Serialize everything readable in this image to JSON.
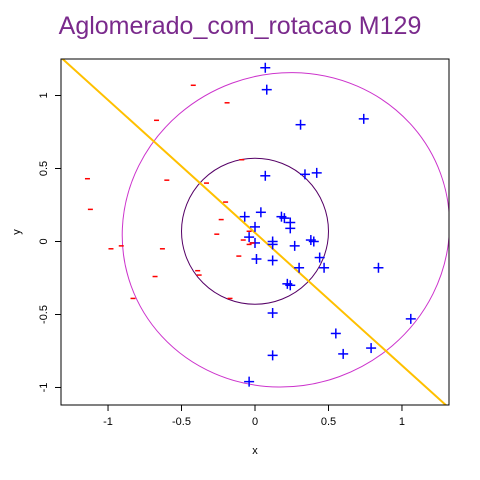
{
  "chart_data": {
    "type": "scatter",
    "title": "Aglomerado_com_rotacao M129",
    "xlabel": "x",
    "ylabel": "y",
    "xlim": [
      -1.32,
      1.32
    ],
    "ylim": [
      -1.12,
      1.25
    ],
    "xticks": [
      -1,
      -0.5,
      0,
      0.5,
      1
    ],
    "xtick_labels": [
      "-1",
      "-0.5",
      "0",
      "0.5",
      "1"
    ],
    "yticks": [
      -1,
      -0.5,
      0,
      0.5,
      1
    ],
    "ytick_labels": [
      "-1",
      "-0.5",
      "0",
      "0.5",
      "1"
    ],
    "grid": false,
    "colors": {
      "title": "#7a2a8c",
      "plus": "#0000ff",
      "minus": "#ff0000",
      "line": "#ffc000",
      "ellipse": "#cc33cc",
      "inner_circle": "#550066",
      "axes": "#000000"
    },
    "series": [
      {
        "marker": "plus",
        "points": [
          [
            0.07,
            1.19
          ],
          [
            0.08,
            1.04
          ],
          [
            0.31,
            0.8
          ],
          [
            0.74,
            0.84
          ],
          [
            0.07,
            0.45
          ],
          [
            0.34,
            0.46
          ],
          [
            0.42,
            0.47
          ],
          [
            0.04,
            0.2
          ],
          [
            -0.07,
            0.17
          ],
          [
            0.18,
            0.17
          ],
          [
            0.2,
            0.16
          ],
          [
            0.24,
            0.13
          ],
          [
            0.24,
            0.09
          ],
          [
            0.0,
            0.1
          ],
          [
            -0.04,
            0.03
          ],
          [
            0.0,
            -0.01
          ],
          [
            0.12,
            0.0
          ],
          [
            0.12,
            -0.02
          ],
          [
            0.27,
            -0.03
          ],
          [
            0.4,
            0.0
          ],
          [
            0.38,
            0.01
          ],
          [
            0.44,
            -0.11
          ],
          [
            0.47,
            -0.18
          ],
          [
            0.3,
            -0.18
          ],
          [
            0.01,
            -0.12
          ],
          [
            0.12,
            -0.13
          ],
          [
            0.22,
            -0.29
          ],
          [
            0.24,
            -0.3
          ],
          [
            0.84,
            -0.18
          ],
          [
            0.12,
            -0.49
          ],
          [
            1.06,
            -0.53
          ],
          [
            0.55,
            -0.63
          ],
          [
            0.6,
            -0.77
          ],
          [
            0.79,
            -0.73
          ],
          [
            0.12,
            -0.78
          ],
          [
            -0.04,
            -0.96
          ]
        ]
      },
      {
        "marker": "minus",
        "points": [
          [
            -0.42,
            1.07
          ],
          [
            -0.19,
            0.95
          ],
          [
            -0.67,
            0.83
          ],
          [
            -1.14,
            0.43
          ],
          [
            -0.6,
            0.42
          ],
          [
            -0.33,
            0.4
          ],
          [
            -0.09,
            0.56
          ],
          [
            -1.12,
            0.22
          ],
          [
            -0.2,
            0.27
          ],
          [
            -0.23,
            0.15
          ],
          [
            -0.26,
            0.05
          ],
          [
            -0.04,
            0.07
          ],
          [
            -0.08,
            0.01
          ],
          [
            -0.02,
            -0.01
          ],
          [
            -0.91,
            -0.03
          ],
          [
            -0.98,
            -0.05
          ],
          [
            -0.63,
            -0.05
          ],
          [
            -0.11,
            -0.1
          ],
          [
            -0.39,
            -0.2
          ],
          [
            -0.38,
            -0.23
          ],
          [
            -0.68,
            -0.24
          ],
          [
            -0.83,
            -0.39
          ],
          [
            -0.17,
            -0.39
          ],
          [
            -0.04,
            -0.02
          ]
        ]
      }
    ],
    "line": {
      "x": [
        -1.32,
        1.32
      ],
      "y": [
        1.26,
        -1.14
      ]
    },
    "ellipse": {
      "cx": 0.21,
      "cy": 0.08,
      "rx": 1.12,
      "ry": 1.07,
      "angle_deg": 20
    },
    "inner_circle": {
      "cx": 0.0,
      "cy": 0.07,
      "r": 0.5
    }
  }
}
